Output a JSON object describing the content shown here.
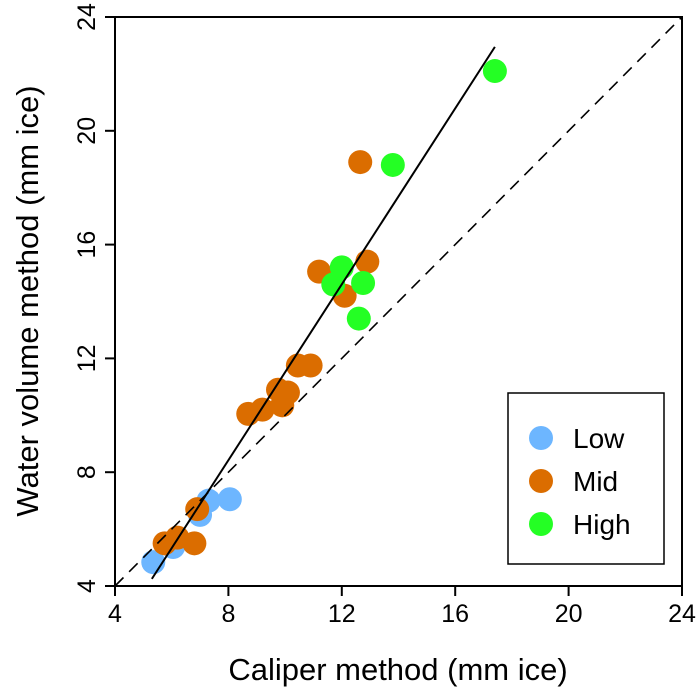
{
  "chart_data": {
    "type": "scatter",
    "title": "",
    "xlabel": "Caliper method (mm ice)",
    "ylabel": "Water volume method (mm ice)",
    "xlim": [
      4,
      24
    ],
    "ylim": [
      4,
      24
    ],
    "xticks": [
      4,
      8,
      12,
      16,
      20,
      24
    ],
    "yticks": [
      4,
      8,
      12,
      16,
      20,
      24
    ],
    "grid": false,
    "legend_position": "bottom-right",
    "series": [
      {
        "name": "Low",
        "color": "#6db6ff",
        "points": [
          [
            5.35,
            4.84
          ],
          [
            6.05,
            5.37
          ],
          [
            7.0,
            6.5
          ],
          [
            7.3,
            7.0
          ],
          [
            8.05,
            7.05
          ]
        ]
      },
      {
        "name": "Mid",
        "color": "#db6d00",
        "points": [
          [
            6.9,
            6.7
          ],
          [
            5.75,
            5.5
          ],
          [
            6.2,
            5.7
          ],
          [
            6.8,
            5.5
          ],
          [
            8.7,
            10.05
          ],
          [
            9.2,
            10.2
          ],
          [
            9.9,
            10.35
          ],
          [
            9.75,
            10.9
          ],
          [
            10.1,
            10.8
          ],
          [
            10.45,
            11.75
          ],
          [
            10.9,
            11.75
          ],
          [
            11.2,
            15.05
          ],
          [
            12.1,
            14.2
          ],
          [
            12.9,
            15.4
          ],
          [
            12.65,
            18.9
          ]
        ]
      },
      {
        "name": "High",
        "color": "#24ff24",
        "points": [
          [
            17.4,
            22.1
          ],
          [
            13.8,
            18.8
          ],
          [
            12.0,
            15.2
          ],
          [
            11.7,
            14.6
          ],
          [
            12.75,
            14.65
          ],
          [
            12.6,
            13.4
          ]
        ]
      }
    ],
    "lines": [
      {
        "kind": "fit",
        "style": "solid",
        "from": [
          5.3,
          4.25
        ],
        "to": [
          17.4,
          22.95
        ]
      },
      {
        "kind": "1:1",
        "style": "dashed",
        "from": [
          4,
          4
        ],
        "to": [
          24,
          24
        ]
      }
    ]
  }
}
